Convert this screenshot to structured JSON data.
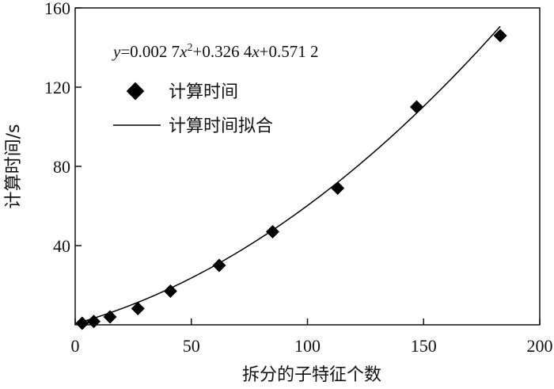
{
  "chart_data": {
    "type": "scatter",
    "xlabel": "拆分的子特征个数",
    "ylabel": "计算时间/s",
    "xlim": [
      0,
      200
    ],
    "ylim": [
      0,
      160
    ],
    "x_ticks": [
      "0",
      "50",
      "100",
      "150",
      "200"
    ],
    "y_ticks": [
      "40",
      "80",
      "120",
      "160"
    ],
    "grid": false,
    "legend_position": "top-left",
    "equation": {
      "prefix": "y",
      "part1": "=0.002 7",
      "x1": "x",
      "power": "2",
      "part2": "+0.326 4",
      "x2": "x",
      "part3": "+0.571 2"
    },
    "fit_coefficients": {
      "a": 0.0027,
      "b": 0.3264,
      "c": 0.5712
    },
    "series": [
      {
        "name": "计算时间",
        "kind": "scatter",
        "marker": "diamond",
        "x": [
          3,
          8,
          15,
          27,
          41,
          62,
          85,
          113,
          147,
          183
        ],
        "y": [
          0.8,
          1.7,
          4.0,
          8.2,
          17.0,
          30.0,
          47.0,
          69.0,
          110.0,
          146.0
        ]
      },
      {
        "name": "计算时间拟合",
        "kind": "line",
        "x_range": [
          3,
          183
        ]
      }
    ]
  }
}
